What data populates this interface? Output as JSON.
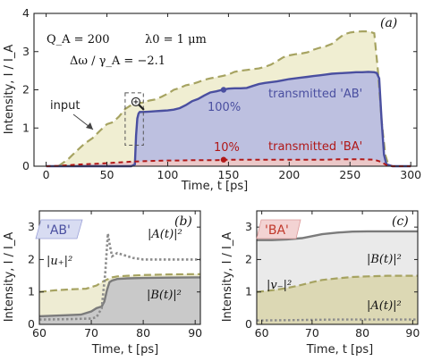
{
  "colors": {
    "transmitted_AB": "#4a4fa0",
    "transmitted_BA": "#b01818",
    "input": "#a6a361",
    "input_fill": "#f0eed2",
    "ab_fill": "#bdc0e0",
    "ba_fill": "#ebc8c8",
    "B_curve": "#7b7b7b",
    "B_fill_b": "#c9c9c9",
    "B_fill_c": "#eaeaea",
    "A_curve": "#8c8c8c",
    "u_fill": "#eeecd3",
    "v_fill": "#dcd8b4",
    "tag_AB_fill": "#d8dcf2",
    "tag_AB_text": "#4a4fa0",
    "tag_BA_fill": "#f3d3d3",
    "tag_BA_text": "#c0392b"
  },
  "icons": {
    "zoom": "magnifier-plus-icon"
  },
  "chart_data": [
    {
      "panel": "(a)",
      "type": "line",
      "xlabel": "Time, t [ps]",
      "ylabel": "Intensity, I / I_A",
      "xlim": [
        -10,
        305
      ],
      "ylim": [
        0,
        4
      ],
      "xticks": [
        0,
        50,
        100,
        150,
        200,
        250,
        300
      ],
      "yticks": [
        0,
        1,
        2,
        3,
        4
      ],
      "params": {
        "line1": "Q_A = 200",
        "line1b": "λ0 = 1 μm",
        "line2": "Δω / γ_A = −2.1"
      },
      "series": [
        {
          "name": "input",
          "style": "dashed",
          "x": [
            10,
            18,
            25,
            32,
            38,
            45,
            50,
            55,
            60,
            65,
            70,
            75,
            80,
            85,
            90,
            95,
            100,
            105,
            110,
            115,
            120,
            125,
            130,
            135,
            140,
            145,
            150,
            155,
            160,
            165,
            170,
            175,
            180,
            185,
            190,
            195,
            200,
            205,
            210,
            215,
            220,
            225,
            230,
            235,
            240,
            245,
            250,
            255,
            260,
            265,
            270,
            273,
            276,
            279,
            282
          ],
          "values": [
            0,
            0.18,
            0.4,
            0.6,
            0.73,
            0.95,
            1.1,
            1.15,
            1.3,
            1.5,
            1.6,
            1.64,
            1.67,
            1.72,
            1.75,
            1.82,
            1.9,
            2.0,
            2.05,
            2.12,
            2.15,
            2.2,
            2.26,
            2.3,
            2.33,
            2.36,
            2.4,
            2.47,
            2.5,
            2.52,
            2.54,
            2.56,
            2.6,
            2.66,
            2.75,
            2.85,
            2.9,
            2.93,
            2.95,
            2.98,
            3.05,
            3.1,
            3.14,
            3.2,
            3.33,
            3.45,
            3.5,
            3.52,
            3.53,
            3.53,
            3.48,
            2.5,
            1.2,
            0.3,
            0
          ]
        },
        {
          "name": "transmitted 'AB'",
          "style": "solid",
          "x": [
            0,
            70,
            71.5,
            73,
            74,
            75,
            76,
            77,
            80,
            85,
            90,
            95,
            100,
            105,
            110,
            115,
            120,
            125,
            130,
            135,
            140,
            145,
            150,
            155,
            160,
            165,
            170,
            175,
            180,
            185,
            190,
            195,
            200,
            205,
            210,
            215,
            220,
            225,
            230,
            235,
            240,
            245,
            250,
            255,
            260,
            265,
            270,
            272,
            274,
            276,
            278,
            280,
            285,
            300
          ],
          "values": [
            0,
            0,
            0.02,
            0.05,
            0.8,
            1.25,
            1.38,
            1.42,
            1.42,
            1.43,
            1.44,
            1.45,
            1.46,
            1.48,
            1.52,
            1.6,
            1.7,
            1.76,
            1.85,
            1.93,
            1.96,
            2.0,
            2.03,
            2.04,
            2.04,
            2.05,
            2.1,
            2.15,
            2.18,
            2.2,
            2.22,
            2.25,
            2.28,
            2.3,
            2.32,
            2.34,
            2.36,
            2.38,
            2.4,
            2.42,
            2.43,
            2.44,
            2.45,
            2.46,
            2.46,
            2.47,
            2.46,
            2.44,
            2.3,
            1.2,
            0.3,
            0.05,
            0,
            0
          ]
        },
        {
          "name": "transmitted 'BA'",
          "style": "dashed",
          "x": [
            0,
            10,
            20,
            30,
            40,
            50,
            60,
            70,
            80,
            90,
            100,
            110,
            120,
            130,
            140,
            150,
            160,
            170,
            180,
            190,
            200,
            210,
            220,
            230,
            240,
            250,
            260,
            270,
            275,
            280,
            285,
            300
          ],
          "values": [
            0,
            0.01,
            0.03,
            0.05,
            0.06,
            0.08,
            0.1,
            0.12,
            0.13,
            0.14,
            0.15,
            0.15,
            0.16,
            0.16,
            0.16,
            0.17,
            0.17,
            0.17,
            0.17,
            0.17,
            0.17,
            0.17,
            0.17,
            0.17,
            0.18,
            0.18,
            0.18,
            0.17,
            0.12,
            0.03,
            0,
            0
          ]
        }
      ],
      "markers": [
        {
          "x": 146,
          "y": 2.0,
          "label": "100%"
        },
        {
          "x": 146,
          "y": 0.17,
          "label": "10%"
        }
      ],
      "annotations": {
        "input_label": "input",
        "ab_label": "transmitted 'AB'",
        "ba_label": "transmitted 'BA'"
      },
      "inset_box": {
        "x": [
          65,
          80
        ],
        "y": [
          0.55,
          1.92
        ]
      }
    },
    {
      "panel": "(b)",
      "type": "line",
      "tag": "'AB'",
      "xlabel": "Time, t [ps]",
      "ylabel": "Intensity, I / I_A",
      "xlim": [
        60,
        91
      ],
      "ylim": [
        0,
        3.5
      ],
      "xticks": [
        60,
        70,
        80,
        90
      ],
      "yticks": [
        0,
        1,
        2,
        3
      ],
      "series": [
        {
          "name": "|B(t)|²",
          "style": "solid",
          "x": [
            60,
            65,
            68,
            70,
            71,
            72,
            72.5,
            73,
            73.5,
            74,
            75,
            77,
            80,
            85,
            90,
            91
          ],
          "values": [
            0.25,
            0.28,
            0.3,
            0.4,
            0.5,
            0.55,
            0.7,
            1.05,
            1.3,
            1.35,
            1.4,
            1.42,
            1.43,
            1.44,
            1.45,
            1.45
          ]
        },
        {
          "name": "|A(t)|²",
          "style": "dotted",
          "x": [
            60,
            65,
            70,
            71,
            72,
            72.7,
            73.2,
            73.6,
            74,
            75,
            76,
            78,
            80,
            85,
            90,
            91
          ],
          "values": [
            0.15,
            0.16,
            0.18,
            0.22,
            0.5,
            1.6,
            2.8,
            2.4,
            2.1,
            2.2,
            2.15,
            2.05,
            2.0,
            2.0,
            2.0,
            2.0
          ]
        },
        {
          "name": "|u₊|²",
          "style": "dashed",
          "x": [
            60,
            63,
            66,
            69,
            71,
            72,
            73,
            74,
            75,
            77,
            80,
            85,
            90,
            91
          ],
          "values": [
            1.0,
            1.05,
            1.08,
            1.1,
            1.2,
            1.3,
            1.38,
            1.45,
            1.48,
            1.5,
            1.52,
            1.54,
            1.55,
            1.55
          ]
        }
      ],
      "labels": {
        "u": "|u₊|²",
        "A": "|A(t)|²",
        "B": "|B(t)|²"
      }
    },
    {
      "panel": "(c)",
      "type": "line",
      "tag": "'BA'",
      "xlabel": "Time, t [ps]",
      "ylabel": "Intensity, I / I_A",
      "xlim": [
        59,
        91
      ],
      "ylim": [
        0,
        3.5
      ],
      "xticks": [
        60,
        70,
        80,
        90
      ],
      "yticks": [
        0,
        1,
        2,
        3
      ],
      "series": [
        {
          "name": "|B(t)|²",
          "style": "solid",
          "x": [
            59,
            62,
            65,
            68,
            70,
            72,
            75,
            78,
            81,
            85,
            91
          ],
          "values": [
            2.6,
            2.6,
            2.62,
            2.66,
            2.72,
            2.78,
            2.83,
            2.86,
            2.87,
            2.87,
            2.87
          ]
        },
        {
          "name": "|v₋|²",
          "style": "dashed",
          "x": [
            59,
            62,
            65,
            68,
            70,
            72,
            75,
            78,
            81,
            85,
            91
          ],
          "values": [
            1.0,
            1.05,
            1.12,
            1.22,
            1.3,
            1.37,
            1.42,
            1.46,
            1.48,
            1.5,
            1.5
          ]
        },
        {
          "name": "|A(t)|²",
          "style": "dotted",
          "x": [
            59,
            65,
            70,
            75,
            80,
            85,
            91
          ],
          "values": [
            0.12,
            0.13,
            0.14,
            0.15,
            0.15,
            0.15,
            0.15
          ]
        }
      ],
      "labels": {
        "B": "|B(t)|²",
        "v": "|v₋|²",
        "A": "|A(t)|²"
      }
    }
  ]
}
